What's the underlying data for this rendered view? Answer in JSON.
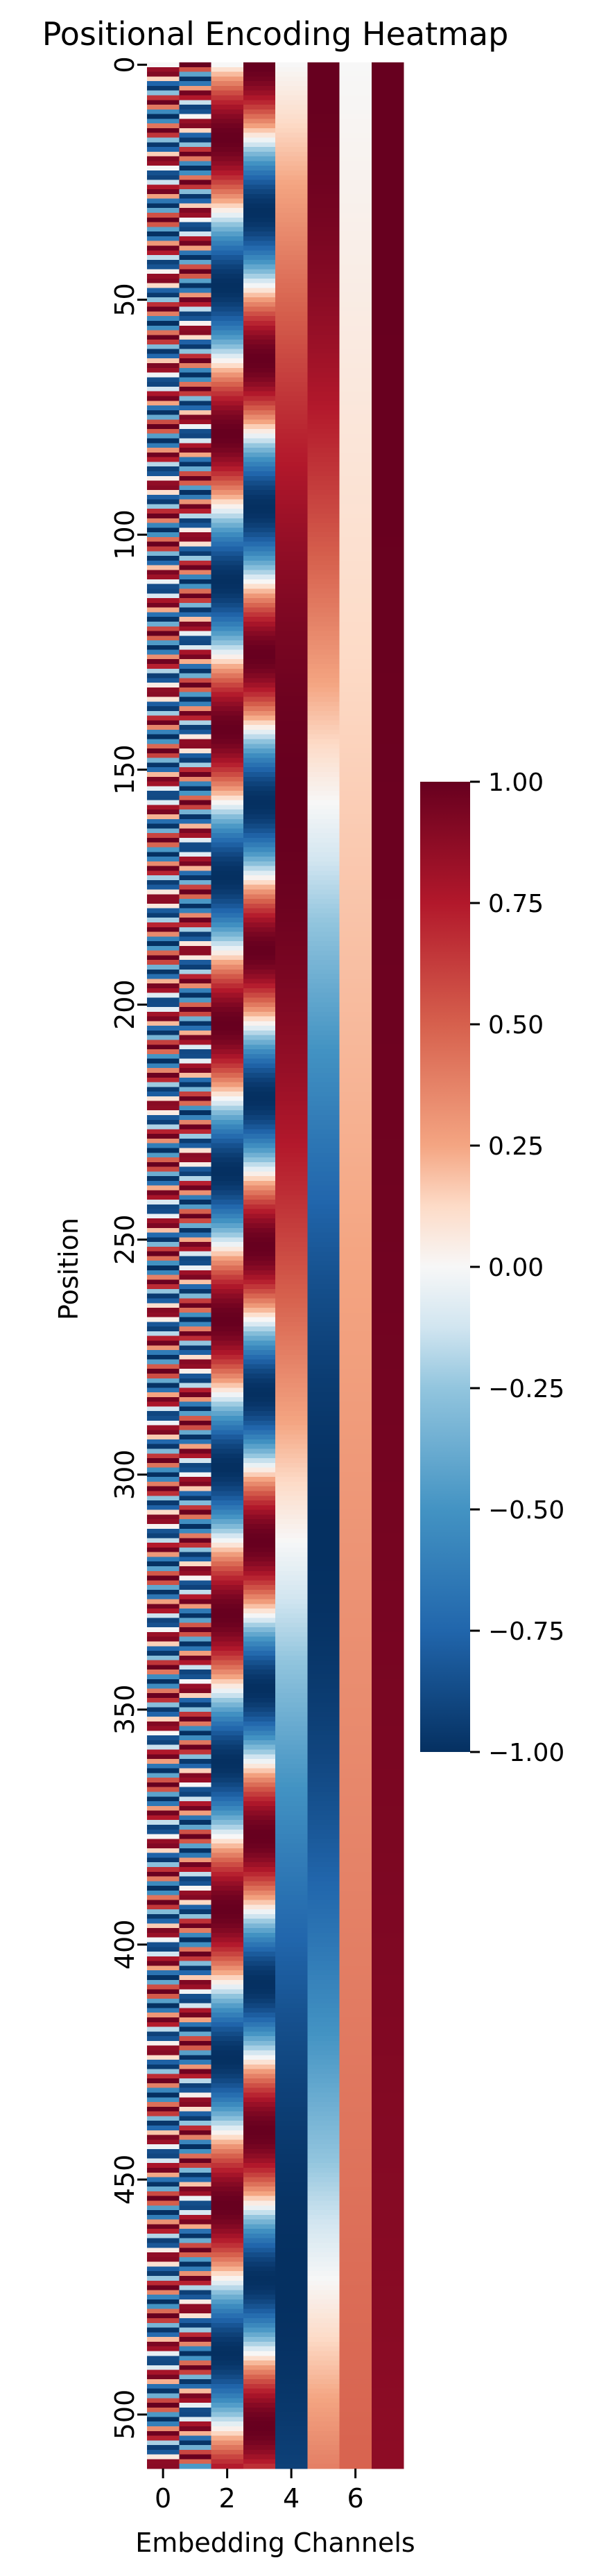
{
  "chart_data": {
    "type": "heatmap",
    "title": "Positional Encoding Heatmap",
    "xlabel": "Embedding Channels",
    "ylabel": "Position",
    "n_positions": 512,
    "n_channels": 8,
    "x_ticks": [
      0,
      2,
      4,
      6
    ],
    "y_ticks": [
      0,
      50,
      100,
      150,
      200,
      250,
      300,
      350,
      400,
      450,
      500
    ],
    "x_tick_labels": [
      "0",
      "2",
      "4",
      "6"
    ],
    "y_tick_labels": [
      "0",
      "50",
      "100",
      "150",
      "200",
      "250",
      "300",
      "350",
      "400",
      "450",
      "500"
    ],
    "value_formula": "PE(pos, 2i) = sin(pos / 10000^(2i/8)); PE(pos, 2i+1) = cos(pos / 10000^(2i/8))",
    "vmin": -1.0,
    "vmax": 1.0,
    "colormap": "RdBu_r",
    "colorbar": {
      "ticks": [
        1.0,
        0.75,
        0.5,
        0.25,
        0.0,
        -0.25,
        -0.5,
        -0.75,
        -1.0
      ],
      "tick_labels": [
        "1.00",
        "0.75",
        "0.50",
        "0.25",
        "0.00",
        "−0.25",
        "−0.50",
        "−0.75",
        "−1.00"
      ]
    },
    "grid": false,
    "legend": "colorbar-right"
  }
}
